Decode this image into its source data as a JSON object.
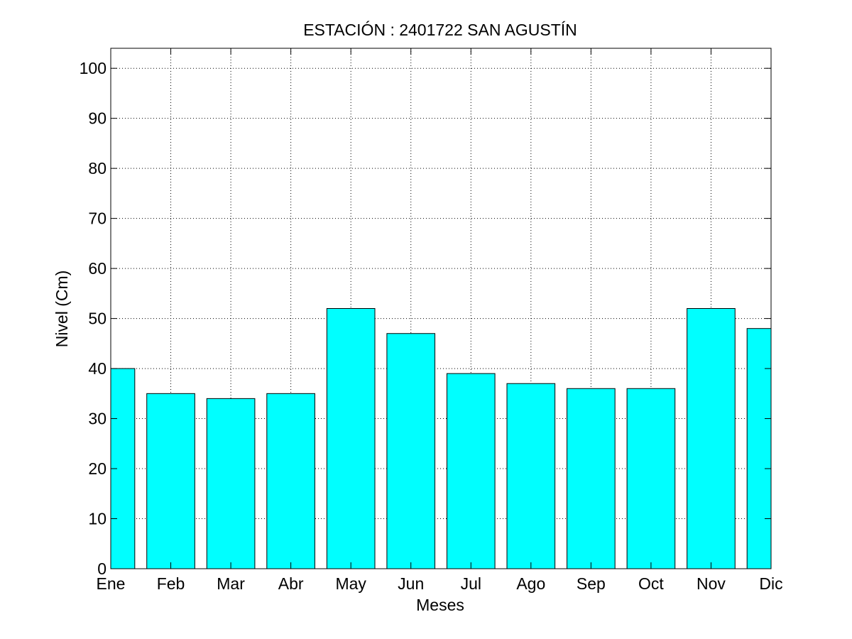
{
  "chart_data": {
    "type": "bar",
    "title": "ESTACIÓN :  2401722  SAN AGUSTÍN",
    "xlabel": "Meses",
    "ylabel": "Nivel (Cm)",
    "categories": [
      "Ene",
      "Feb",
      "Mar",
      "Abr",
      "May",
      "Jun",
      "Jul",
      "Ago",
      "Sep",
      "Oct",
      "Nov",
      "Dic"
    ],
    "values": [
      40,
      35,
      34,
      35,
      52,
      47,
      39,
      37,
      36,
      36,
      52,
      48
    ],
    "ylim": [
      0,
      104
    ],
    "yticks": [
      0,
      10,
      20,
      30,
      40,
      50,
      60,
      70,
      80,
      90,
      100
    ],
    "grid": true,
    "colors": {
      "bar": "#00ffff",
      "edge": "#000000",
      "grid": "#000000"
    }
  }
}
